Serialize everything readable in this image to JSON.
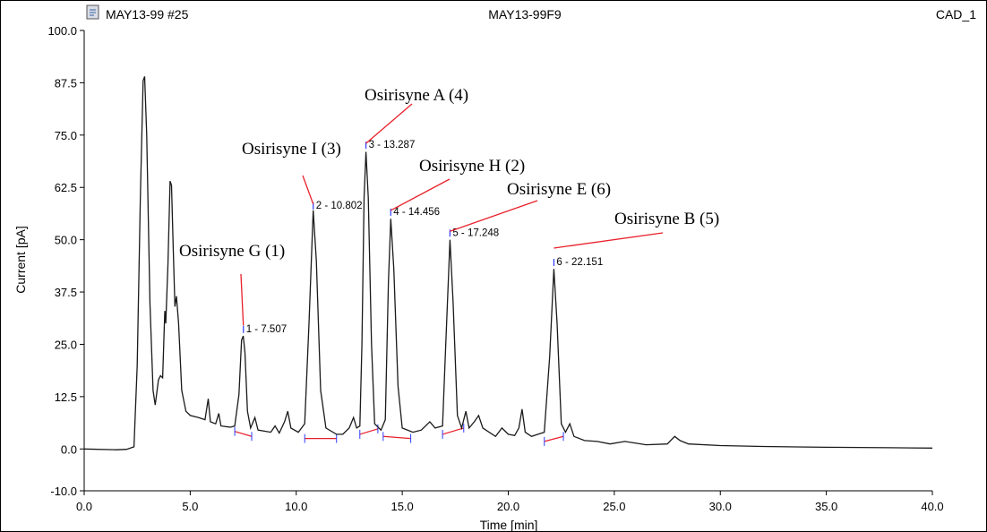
{
  "header": {
    "left": "MAY13-99 #25",
    "center": "MAY13-99F9",
    "right": "CAD_1",
    "icon": "document-icon"
  },
  "chart_data": {
    "type": "line",
    "xlabel": "Time [min]",
    "ylabel": "Current [pA]",
    "xlim": [
      0,
      40
    ],
    "ylim": [
      -10,
      100
    ],
    "xticks": [
      "0.0",
      "5.0",
      "10.0",
      "15.0",
      "20.0",
      "25.0",
      "30.0",
      "35.0",
      "40.0"
    ],
    "yticks": [
      "-10.0",
      "0.0",
      "12.5",
      "25.0",
      "37.5",
      "50.0",
      "62.5",
      "75.0",
      "87.5",
      "100.0"
    ],
    "series": [
      {
        "color": "#1a1a1a",
        "points": [
          [
            0,
            0
          ],
          [
            1.5,
            -0.2
          ],
          [
            2.0,
            -0.1
          ],
          [
            2.35,
            0.5
          ],
          [
            2.5,
            20
          ],
          [
            2.65,
            60
          ],
          [
            2.78,
            88
          ],
          [
            2.85,
            89
          ],
          [
            2.95,
            75
          ],
          [
            3.1,
            35
          ],
          [
            3.25,
            14
          ],
          [
            3.35,
            10.5
          ],
          [
            3.5,
            16.5
          ],
          [
            3.6,
            17.5
          ],
          [
            3.7,
            17
          ],
          [
            3.8,
            33
          ],
          [
            3.85,
            30
          ],
          [
            3.95,
            44
          ],
          [
            4.05,
            64
          ],
          [
            4.12,
            63
          ],
          [
            4.2,
            48
          ],
          [
            4.28,
            34
          ],
          [
            4.35,
            36.5
          ],
          [
            4.45,
            30
          ],
          [
            4.6,
            14
          ],
          [
            4.8,
            9
          ],
          [
            5.0,
            8
          ],
          [
            5.4,
            7.5
          ],
          [
            5.7,
            7
          ],
          [
            5.85,
            12
          ],
          [
            5.95,
            6.5
          ],
          [
            6.2,
            6
          ],
          [
            6.35,
            8.5
          ],
          [
            6.45,
            5.5
          ],
          [
            6.9,
            5.2
          ],
          [
            7.1,
            5.5
          ],
          [
            7.3,
            13
          ],
          [
            7.42,
            26
          ],
          [
            7.5,
            27
          ],
          [
            7.58,
            23
          ],
          [
            7.7,
            9
          ],
          [
            7.85,
            5
          ],
          [
            8.05,
            7.5
          ],
          [
            8.2,
            4.5
          ],
          [
            8.8,
            4
          ],
          [
            9.0,
            5.5
          ],
          [
            9.2,
            3.8
          ],
          [
            9.45,
            6.5
          ],
          [
            9.6,
            9
          ],
          [
            9.75,
            5
          ],
          [
            10.1,
            4
          ],
          [
            10.4,
            6
          ],
          [
            10.6,
            30
          ],
          [
            10.8,
            57
          ],
          [
            10.95,
            45
          ],
          [
            11.15,
            14
          ],
          [
            11.4,
            5
          ],
          [
            11.9,
            3.5
          ],
          [
            12.2,
            3.5
          ],
          [
            12.5,
            5
          ],
          [
            12.7,
            7.5
          ],
          [
            12.85,
            5
          ],
          [
            13.0,
            5.5
          ],
          [
            13.1,
            25
          ],
          [
            13.2,
            60
          ],
          [
            13.29,
            71
          ],
          [
            13.4,
            60
          ],
          [
            13.55,
            25
          ],
          [
            13.7,
            6
          ],
          [
            14.0,
            4.5
          ],
          [
            14.2,
            7
          ],
          [
            14.35,
            40
          ],
          [
            14.46,
            55
          ],
          [
            14.6,
            43
          ],
          [
            14.8,
            15
          ],
          [
            15.0,
            5
          ],
          [
            15.5,
            4
          ],
          [
            15.9,
            4.5
          ],
          [
            16.3,
            6.5
          ],
          [
            16.55,
            5
          ],
          [
            16.9,
            5.5
          ],
          [
            17.05,
            25
          ],
          [
            17.25,
            50
          ],
          [
            17.4,
            35
          ],
          [
            17.6,
            8
          ],
          [
            17.8,
            5
          ],
          [
            18.0,
            9
          ],
          [
            18.15,
            5
          ],
          [
            18.4,
            6.5
          ],
          [
            18.6,
            8
          ],
          [
            18.8,
            5
          ],
          [
            19.4,
            3
          ],
          [
            19.7,
            5
          ],
          [
            20.0,
            3.5
          ],
          [
            20.3,
            3.2
          ],
          [
            20.5,
            5
          ],
          [
            20.65,
            9.5
          ],
          [
            20.8,
            4
          ],
          [
            21.1,
            3
          ],
          [
            21.4,
            3.5
          ],
          [
            21.7,
            4
          ],
          [
            21.95,
            22
          ],
          [
            22.15,
            43
          ],
          [
            22.3,
            30
          ],
          [
            22.5,
            6
          ],
          [
            22.7,
            4
          ],
          [
            22.9,
            6
          ],
          [
            23.1,
            3
          ],
          [
            23.6,
            2
          ],
          [
            24.2,
            1.8
          ],
          [
            24.8,
            1.2
          ],
          [
            25.5,
            1.8
          ],
          [
            26.5,
            1
          ],
          [
            27.5,
            1.2
          ],
          [
            27.85,
            3
          ],
          [
            28.1,
            2
          ],
          [
            28.5,
            1.2
          ],
          [
            30.0,
            0.8
          ],
          [
            32.0,
            0.6
          ],
          [
            35.0,
            0.4
          ],
          [
            38.0,
            0.3
          ],
          [
            40.0,
            0.2
          ]
        ]
      }
    ],
    "peaks": [
      {
        "label": "1 - 7.507",
        "x": 7.507,
        "y": 27.5
      },
      {
        "label": "2 - 10.802",
        "x": 10.802,
        "y": 57
      },
      {
        "label": "3 - 13.287",
        "x": 13.287,
        "y": 71.5
      },
      {
        "label": "4 - 14.456",
        "x": 14.456,
        "y": 55.5
      },
      {
        "label": "5 - 17.248",
        "x": 17.248,
        "y": 50.5
      },
      {
        "label": "6 - 22.151",
        "x": 22.151,
        "y": 43.5
      }
    ],
    "annotations": [
      {
        "text": "Osirisyne G (1)",
        "target": [
          7.507,
          29.5
        ]
      },
      {
        "text": "Osirisyne I (3)",
        "target": [
          10.802,
          58.5
        ]
      },
      {
        "text": "Osirisyne A (4)",
        "target": [
          13.287,
          73
        ]
      },
      {
        "text": "Osirisyne H (2)",
        "target": [
          14.456,
          57
        ]
      },
      {
        "text": "Osirisyne E (6)",
        "target": [
          17.248,
          52
        ]
      },
      {
        "text": "Osirisyne B (5)",
        "target": [
          22.151,
          48
        ]
      }
    ],
    "baselines": [
      [
        [
          7.1,
          4.2
        ],
        [
          7.9,
          3.0
        ]
      ],
      [
        [
          10.4,
          2.5
        ],
        [
          11.9,
          2.5
        ]
      ],
      [
        [
          13.0,
          3.5
        ],
        [
          13.85,
          4.8
        ]
      ],
      [
        [
          14.1,
          3.0
        ],
        [
          15.4,
          2.5
        ]
      ],
      [
        [
          16.9,
          3.5
        ],
        [
          17.9,
          5.0
        ]
      ],
      [
        [
          21.7,
          1.8
        ],
        [
          22.6,
          3.0
        ]
      ]
    ]
  }
}
